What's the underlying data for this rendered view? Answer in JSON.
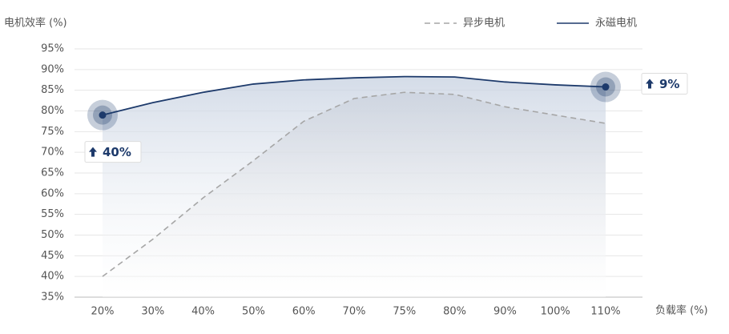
{
  "chart_data": {
    "type": "line",
    "y_label": "电机效率 (%)",
    "x_label": "负载率 (%)",
    "categories": [
      "20%",
      "30%",
      "40%",
      "50%",
      "60%",
      "70%",
      "75%",
      "80%",
      "90%",
      "100%",
      "110%"
    ],
    "series": [
      {
        "name": "异步电机",
        "color": "#a6a6a6",
        "dash": true,
        "values": [
          40,
          49,
          59,
          68,
          77.5,
          83,
          84.5,
          84,
          81,
          79,
          77
        ]
      },
      {
        "name": "永磁电机",
        "color": "#1d3a6b",
        "dash": false,
        "values": [
          79,
          82,
          84.5,
          86.5,
          87.5,
          88,
          88.3,
          88.2,
          87,
          86.3,
          85.8
        ]
      }
    ],
    "ylim": [
      35,
      95
    ],
    "yticks": [
      {
        "value": 35,
        "label": "35%"
      },
      {
        "value": 40,
        "label": "40%"
      },
      {
        "value": 45,
        "label": "45%"
      },
      {
        "value": 50,
        "label": "50%"
      },
      {
        "value": 55,
        "label": "55%"
      },
      {
        "value": 60,
        "label": "60%"
      },
      {
        "value": 65,
        "label": "65%"
      },
      {
        "value": 70,
        "label": "70%"
      },
      {
        "value": 75,
        "label": "75%"
      },
      {
        "value": 80,
        "label": "80%"
      },
      {
        "value": 85,
        "label": "85%"
      },
      {
        "value": 90,
        "label": "90%"
      },
      {
        "value": 95,
        "label": "95%"
      }
    ],
    "grid": true,
    "annotations": [
      {
        "text": "40%",
        "series": 1,
        "index": 0
      },
      {
        "text": "9%",
        "series": 1,
        "index": 10
      }
    ]
  }
}
